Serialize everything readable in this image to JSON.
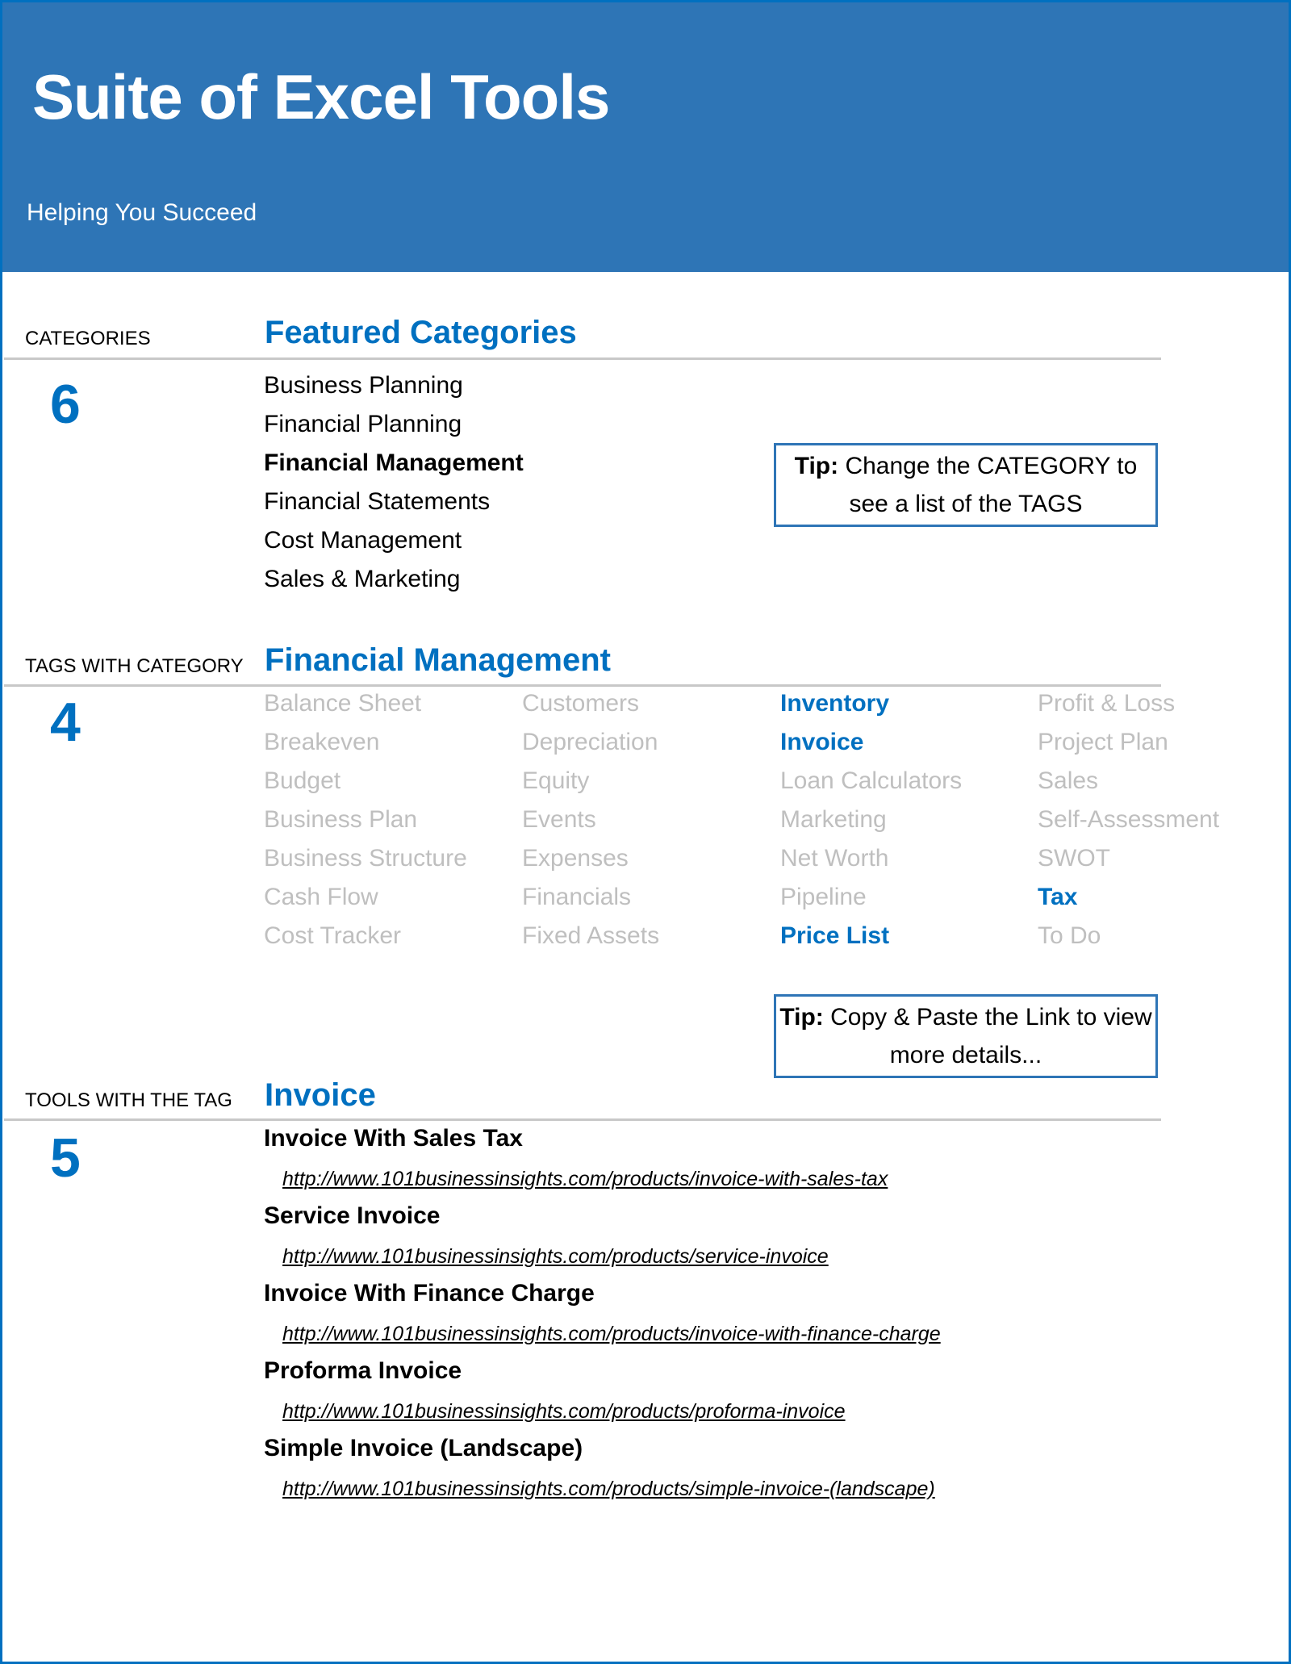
{
  "header": {
    "title": "Suite of Excel Tools",
    "subtitle": "Helping You Succeed"
  },
  "colors": {
    "brand": "#2E75B6",
    "accent": "#0070C0",
    "inactive_tag": "#BFBFBF"
  },
  "categories": {
    "label": "CATEGORIES",
    "heading": "Featured Categories",
    "count": "6",
    "items": [
      {
        "label": "Business Planning",
        "selected": false
      },
      {
        "label": "Financial Planning",
        "selected": false
      },
      {
        "label": "Financial Management",
        "selected": true
      },
      {
        "label": "Financial Statements",
        "selected": false
      },
      {
        "label": "Cost Management",
        "selected": false
      },
      {
        "label": "Sales & Marketing",
        "selected": false
      }
    ],
    "tip": {
      "bold": "Tip:",
      "text": " Change the CATEGORY to see a list of the TAGS"
    }
  },
  "tags": {
    "label": "TAGS WITH CATEGORY",
    "heading": "Financial Management",
    "count": "4",
    "columns": [
      [
        {
          "label": "Balance Sheet",
          "active": false
        },
        {
          "label": "Breakeven",
          "active": false
        },
        {
          "label": "Budget",
          "active": false
        },
        {
          "label": "Business Plan",
          "active": false
        },
        {
          "label": "Business Structure",
          "active": false
        },
        {
          "label": "Cash Flow",
          "active": false
        },
        {
          "label": "Cost Tracker",
          "active": false
        }
      ],
      [
        {
          "label": "Customers",
          "active": false
        },
        {
          "label": "Depreciation",
          "active": false
        },
        {
          "label": "Equity",
          "active": false
        },
        {
          "label": "Events",
          "active": false
        },
        {
          "label": "Expenses",
          "active": false
        },
        {
          "label": "Financials",
          "active": false
        },
        {
          "label": "Fixed Assets",
          "active": false
        }
      ],
      [
        {
          "label": "Inventory",
          "active": true
        },
        {
          "label": "Invoice",
          "active": true
        },
        {
          "label": "Loan Calculators",
          "active": false
        },
        {
          "label": "Marketing",
          "active": false
        },
        {
          "label": "Net Worth",
          "active": false
        },
        {
          "label": "Pipeline",
          "active": false
        },
        {
          "label": "Price List",
          "active": true
        }
      ],
      [
        {
          "label": "Profit & Loss",
          "active": false
        },
        {
          "label": "Project Plan",
          "active": false
        },
        {
          "label": "Sales",
          "active": false
        },
        {
          "label": "Self-Assessment",
          "active": false
        },
        {
          "label": "SWOT",
          "active": false
        },
        {
          "label": "Tax",
          "active": true
        },
        {
          "label": "To Do",
          "active": false
        }
      ]
    ],
    "tip": {
      "bold": "Tip:",
      "text": " Copy & Paste the Link to view more details..."
    }
  },
  "tools": {
    "label": "TOOLS WITH THE TAG",
    "heading": "Invoice",
    "count": "5",
    "items": [
      {
        "title": "Invoice With Sales Tax",
        "url": "http://www.101businessinsights.com/products/invoice-with-sales-tax"
      },
      {
        "title": "Service Invoice",
        "url": "http://www.101businessinsights.com/products/service-invoice"
      },
      {
        "title": "Invoice With Finance Charge",
        "url": "http://www.101businessinsights.com/products/invoice-with-finance-charge"
      },
      {
        "title": "Proforma Invoice",
        "url": "http://www.101businessinsights.com/products/proforma-invoice"
      },
      {
        "title": "Simple Invoice (Landscape)",
        "url": "http://www.101businessinsights.com/products/simple-invoice-(landscape)"
      }
    ]
  }
}
